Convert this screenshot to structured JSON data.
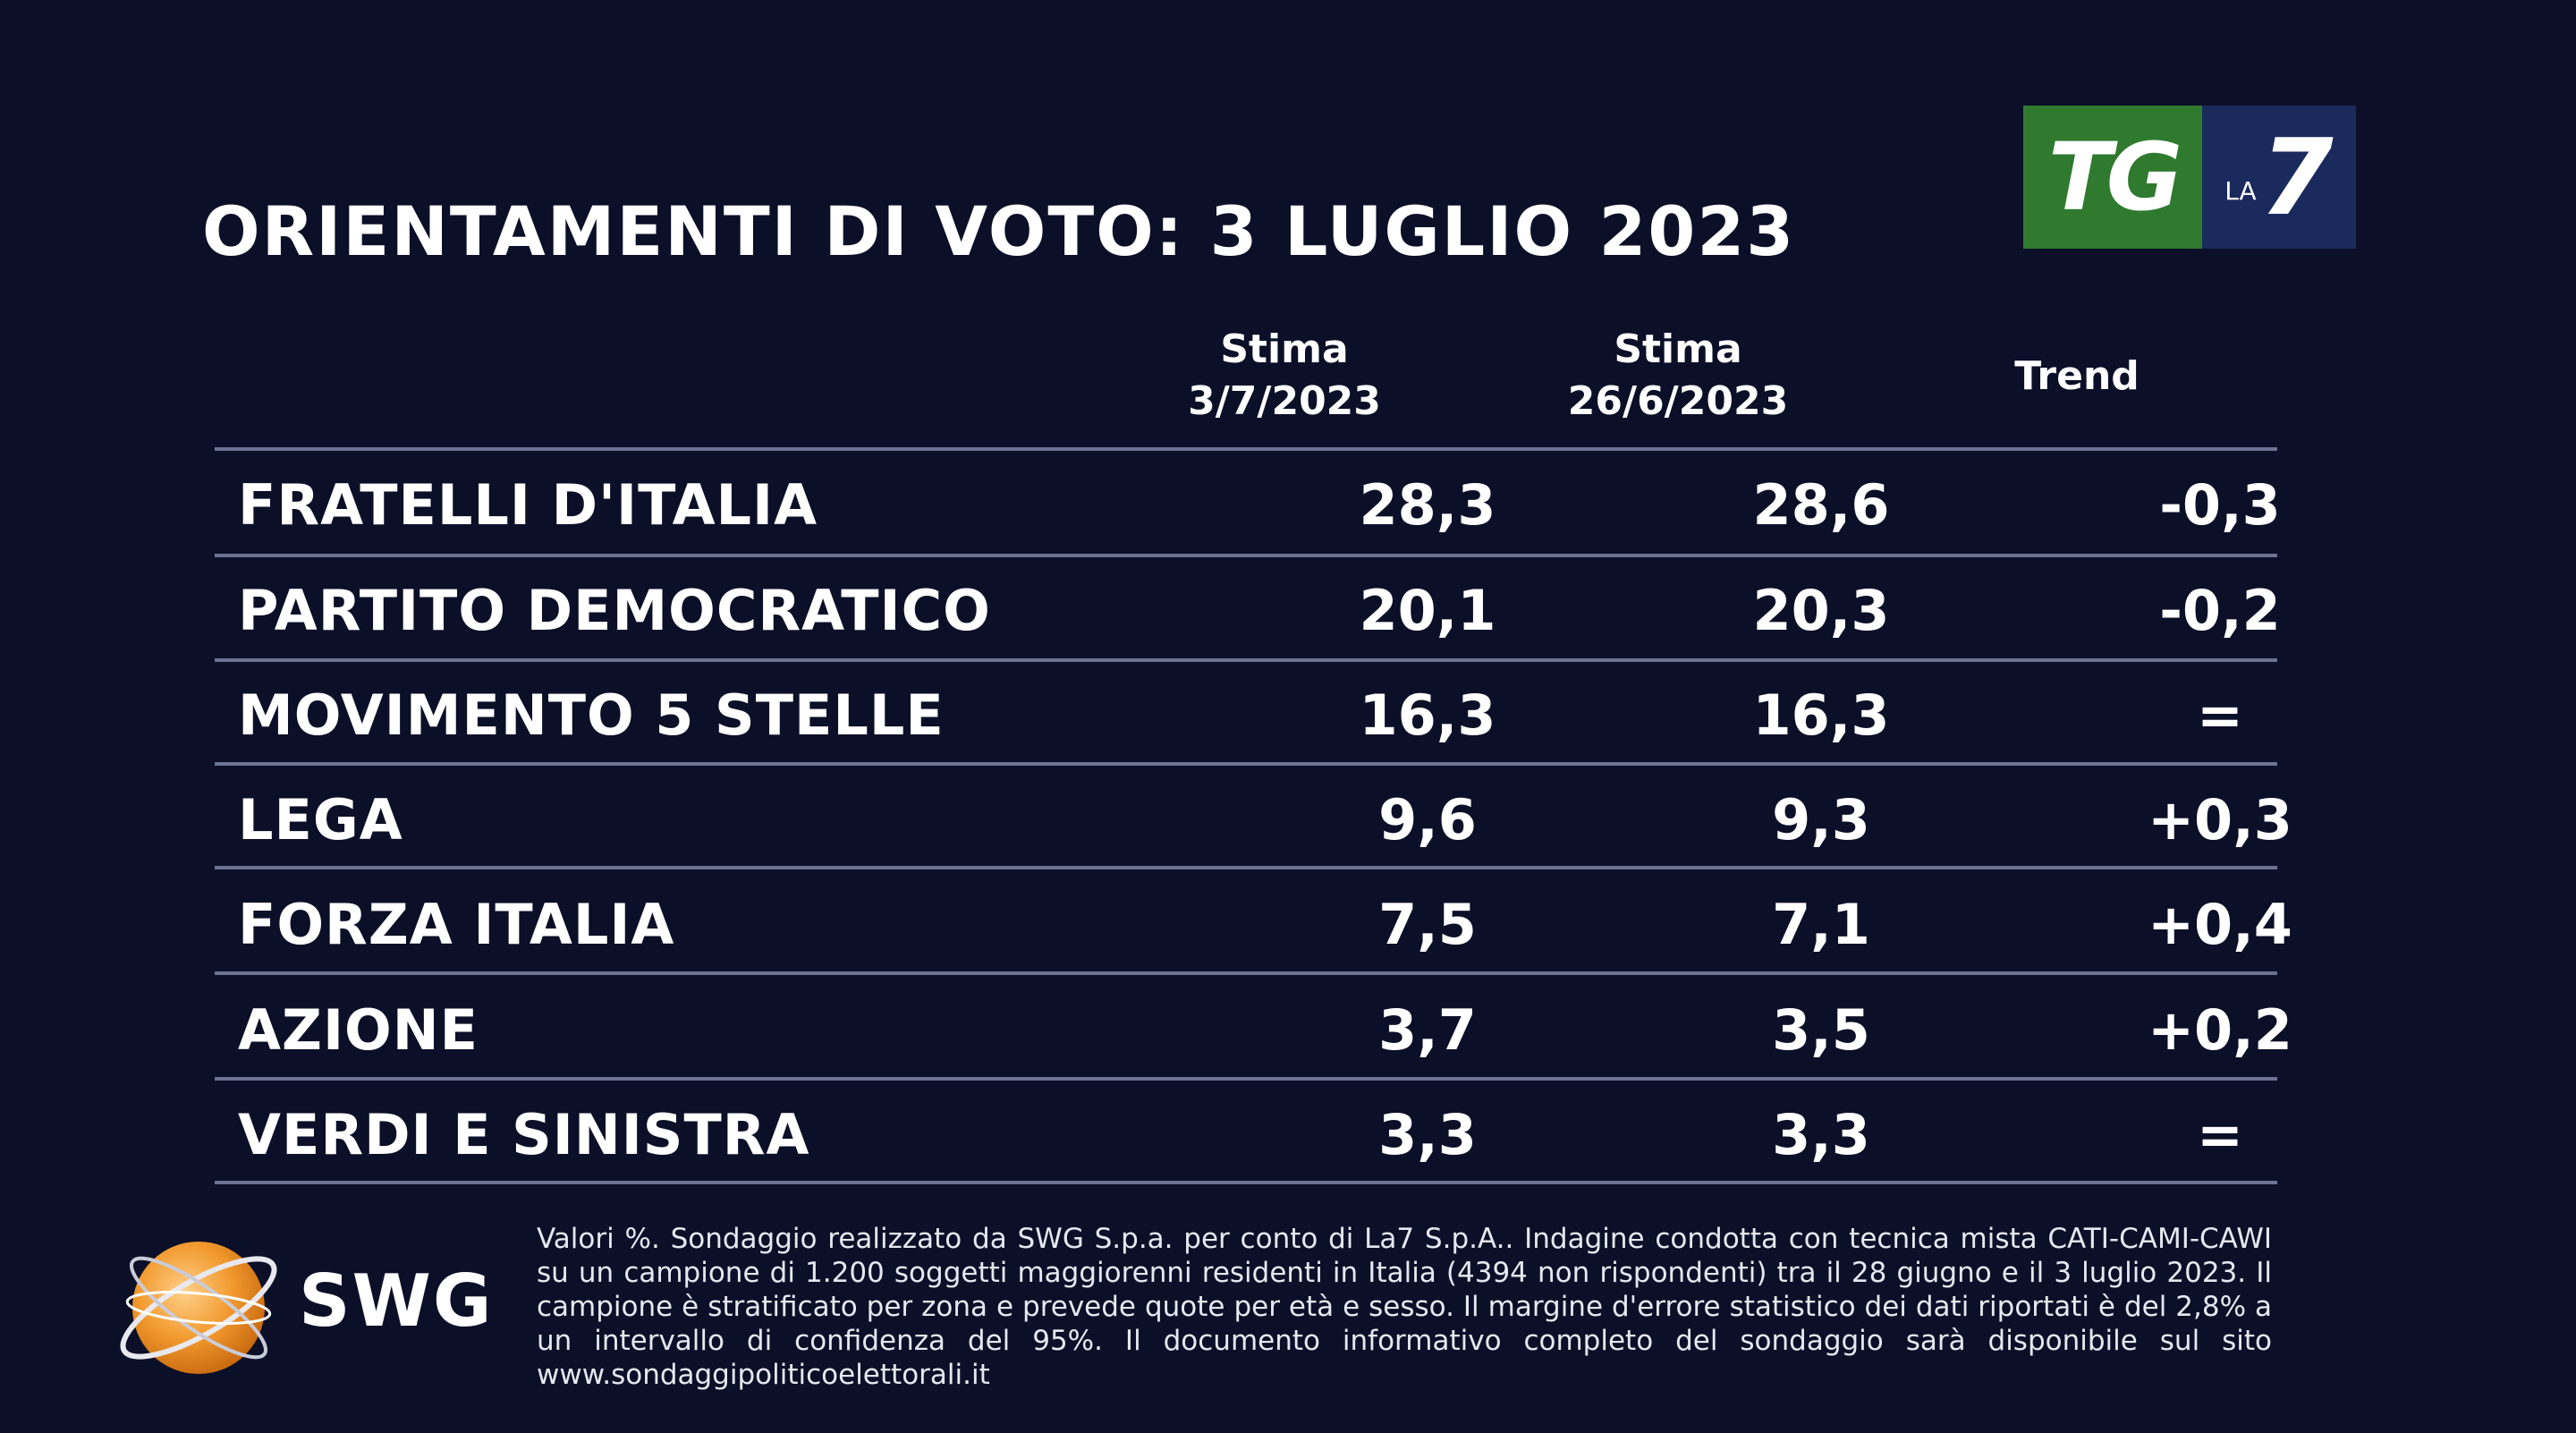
{
  "title": "ORIENTAMENTI DI VOTO: 3 LUGLIO 2023",
  "logo": {
    "tg_text": "TG",
    "la_text": "LA",
    "seven_text": "7",
    "green": "#2f7a2f",
    "blue": "#1b2a5c"
  },
  "chart_data": {
    "type": "table",
    "title": "ORIENTAMENTI DI VOTO: 3 LUGLIO 2023",
    "columns": [
      {
        "line1": "Stima",
        "line2": "3/7/2023"
      },
      {
        "line1": "Stima",
        "line2": "26/6/2023"
      },
      {
        "line1": "Trend",
        "line2": ""
      }
    ],
    "rows": [
      {
        "party": "FRATELLI D'ITALIA",
        "current": "28,3",
        "previous": "28,6",
        "trend": "-0,3"
      },
      {
        "party": "PARTITO DEMOCRATICO",
        "current": "20,1",
        "previous": "20,3",
        "trend": "-0,2"
      },
      {
        "party": "MOVIMENTO 5 STELLE",
        "current": "16,3",
        "previous": "16,3",
        "trend": "="
      },
      {
        "party": "LEGA",
        "current": "9,6",
        "previous": "9,3",
        "trend": "+0,3"
      },
      {
        "party": "FORZA ITALIA",
        "current": "7,5",
        "previous": "7,1",
        "trend": "+0,4"
      },
      {
        "party": "AZIONE",
        "current": "3,7",
        "previous": "3,5",
        "trend": "+0,2"
      },
      {
        "party": "VERDI E SINISTRA",
        "current": "3,3",
        "previous": "3,3",
        "trend": "="
      }
    ]
  },
  "footer": {
    "brand": "SWG",
    "note": "Valori %. Sondaggio realizzato da SWG S.p.a. per conto di La7 S.p.A.. Indagine condotta con tecnica mista CATI-CAMI-CAWI su un campione di 1.200 soggetti maggiorenni residenti in Italia (4394 non rispondenti) tra il 28 giugno e il 3 luglio 2023. Il campione è stratificato per zona e prevede quote per età e sesso. Il margine d'errore statistico dei dati riportati è del 2,8% a un intervallo di confidenza del 95%. Il documento informativo completo del sondaggio sarà disponibile sul sito www.sondaggipoliticoelettorali.it"
  }
}
